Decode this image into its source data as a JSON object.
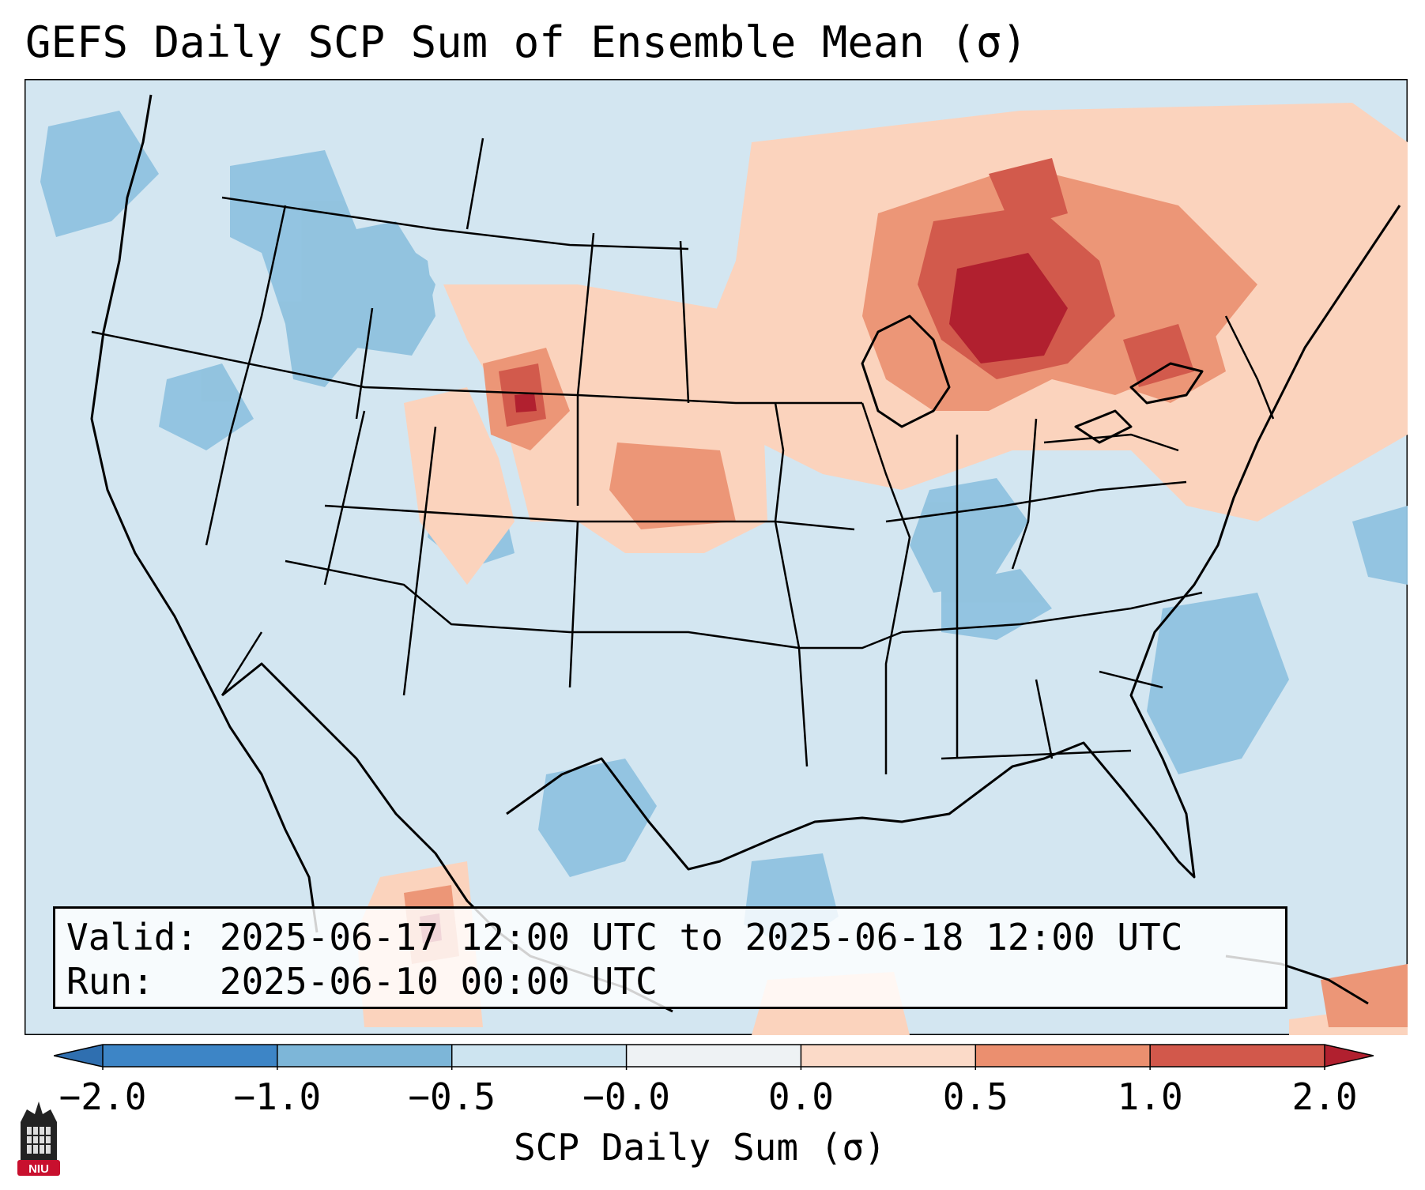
{
  "title": "GEFS Daily SCP Sum of Ensemble Mean (σ)",
  "info": {
    "valid_label": "Valid:",
    "valid_value": "2025-06-17 12:00 UTC to 2025-06-18 12:00 UTC",
    "run_label": "Run:",
    "run_value": "2025-06-10 00:00 UTC"
  },
  "colorbar": {
    "label": "SCP Daily Sum (σ)",
    "ticks": [
      "−2.0",
      "−1.0",
      "−0.5",
      "−0.0",
      "0.0",
      "0.5",
      "1.0",
      "2.0"
    ],
    "bins": [
      {
        "color": "#2f6fb0"
      },
      {
        "color": "#3d85c6"
      },
      {
        "color": "#7db6d8"
      },
      {
        "color": "#cde4f0"
      },
      {
        "color": "#eef2f4"
      },
      {
        "color": "#fbdac8"
      },
      {
        "color": "#eb8f6f"
      },
      {
        "color": "#d2584b"
      },
      {
        "color": "#b1202f"
      }
    ]
  },
  "logo": {
    "text": "NIU",
    "color": "#c8102e"
  },
  "colors": {
    "ocean": "#cfe3ef",
    "map_base": "#d3e6f1",
    "borders": "#000000"
  }
}
